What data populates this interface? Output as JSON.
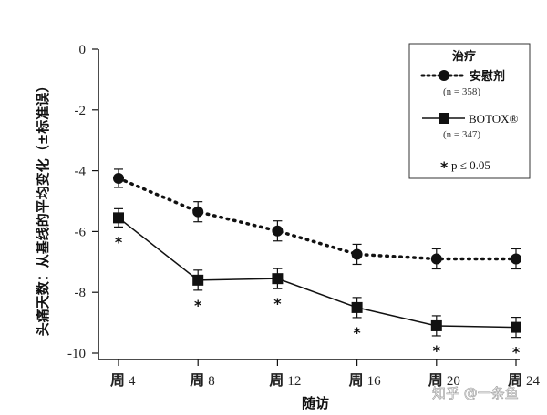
{
  "chart_data": {
    "type": "line",
    "categories": [
      "周 4",
      "周 8",
      "周 12",
      "周 16",
      "周 20",
      "周 24"
    ],
    "categories_parts": [
      {
        "cn": "周",
        "num": "4"
      },
      {
        "cn": "周",
        "num": "8"
      },
      {
        "cn": "周",
        "num": "12"
      },
      {
        "cn": "周",
        "num": "16"
      },
      {
        "cn": "周",
        "num": "20"
      },
      {
        "cn": "周",
        "num": "24"
      }
    ],
    "xlabel": "随访",
    "ylabel": "头痛天数：从基线的平均变化（±标准误）",
    "ylim": [
      -10,
      0
    ],
    "yticks": [
      0,
      -2,
      -4,
      -6,
      -8,
      -10
    ],
    "legend": {
      "title": "治疗",
      "placement": "top-right",
      "note": "p ≤ 0.05",
      "note_marker": "*"
    },
    "series": [
      {
        "name": "安慰剂",
        "n_label": "(n = 358)",
        "marker": "circle",
        "line": "dotted",
        "values": [
          -4.25,
          -5.35,
          -5.98,
          -6.75,
          -6.9,
          -6.9
        ],
        "se": [
          0.3,
          0.33,
          0.33,
          0.33,
          0.33,
          0.33
        ]
      },
      {
        "name": "BOTOX®",
        "n_label": "(n = 347)",
        "marker": "square",
        "line": "solid",
        "values": [
          -5.55,
          -7.6,
          -7.55,
          -8.5,
          -9.1,
          -9.15
        ],
        "se": [
          0.3,
          0.33,
          0.33,
          0.33,
          0.33,
          0.33
        ]
      }
    ],
    "significance_marker": "*",
    "significant_points": [
      0,
      1,
      2,
      3,
      4,
      5
    ]
  },
  "watermark": "知乎 @一条鱼"
}
